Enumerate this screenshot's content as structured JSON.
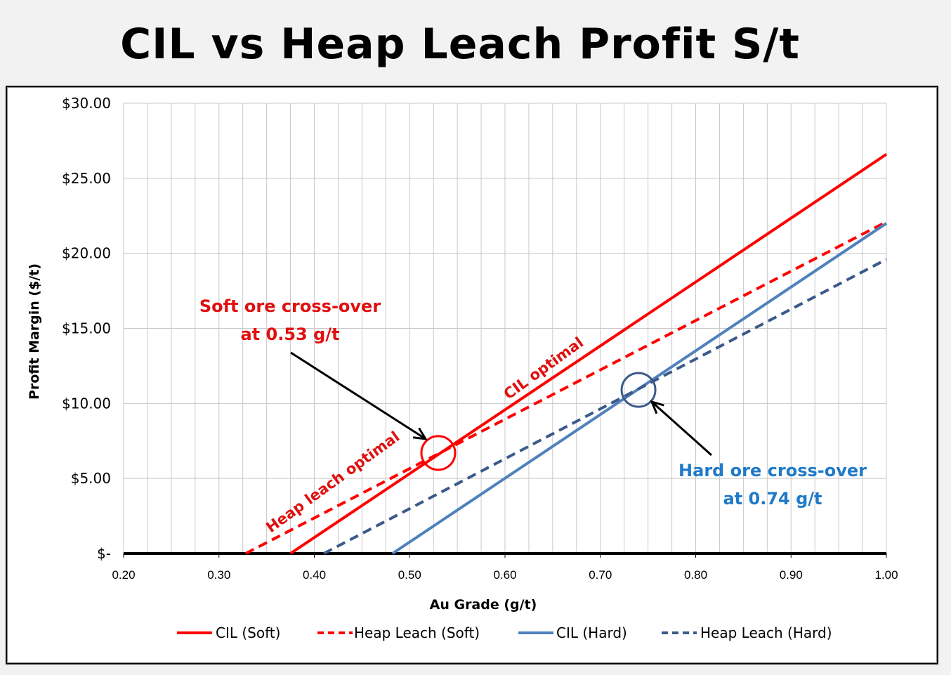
{
  "page": {
    "title": "CIL vs Heap Leach Profit S/t"
  },
  "chart_data": {
    "type": "line",
    "title": "CIL vs Heap Leach Profit S/t",
    "xlabel": "Au Grade (g/t)",
    "ylabel": "Profit Margin ($/t)",
    "xlim": [
      0.2,
      1.0
    ],
    "ylim": [
      0,
      30
    ],
    "x_ticks": [
      "0.20",
      "0.30",
      "0.40",
      "0.50",
      "0.60",
      "0.70",
      "0.80",
      "0.90",
      "1.00"
    ],
    "y_ticks": [
      "$-",
      "$5.00",
      "$10.00",
      "$15.00",
      "$20.00",
      "$25.00",
      "$30.00"
    ],
    "grid": true,
    "legend_position": "bottom",
    "series": [
      {
        "name": "CIL (Soft)",
        "color": "#ff0000",
        "dash": "solid",
        "points": [
          [
            0.375,
            0
          ],
          [
            1.0,
            26.6
          ]
        ]
      },
      {
        "name": "Heap Leach (Soft)",
        "color": "#ff0000",
        "dash": "dashed",
        "points": [
          [
            0.328,
            0
          ],
          [
            1.0,
            22.1
          ]
        ]
      },
      {
        "name": "CIL (Hard)",
        "color": "#4f81bd",
        "dash": "solid",
        "points": [
          [
            0.482,
            0
          ],
          [
            1.0,
            22.0
          ]
        ]
      },
      {
        "name": "Heap Leach (Hard)",
        "color": "#3b5a8a",
        "dash": "dashed",
        "points": [
          [
            0.41,
            0
          ],
          [
            1.0,
            19.6
          ]
        ]
      }
    ],
    "zero_line": {
      "points": [
        [
          0.2,
          0
        ],
        [
          1.0,
          0
        ]
      ]
    },
    "annotations": {
      "soft_crossover": {
        "line1": "Soft ore cross-over",
        "line2": "at 0.53 g/t",
        "x": 0.53,
        "y": 6.7,
        "color": "#e01010"
      },
      "hard_crossover": {
        "line1": "Hard ore cross-over",
        "line2": "at 0.74 g/t",
        "x": 0.74,
        "y": 10.9,
        "color": "#1f7ac8"
      },
      "cil_optimal": "CIL optimal",
      "heap_optimal": "Heap leach optimal"
    }
  }
}
